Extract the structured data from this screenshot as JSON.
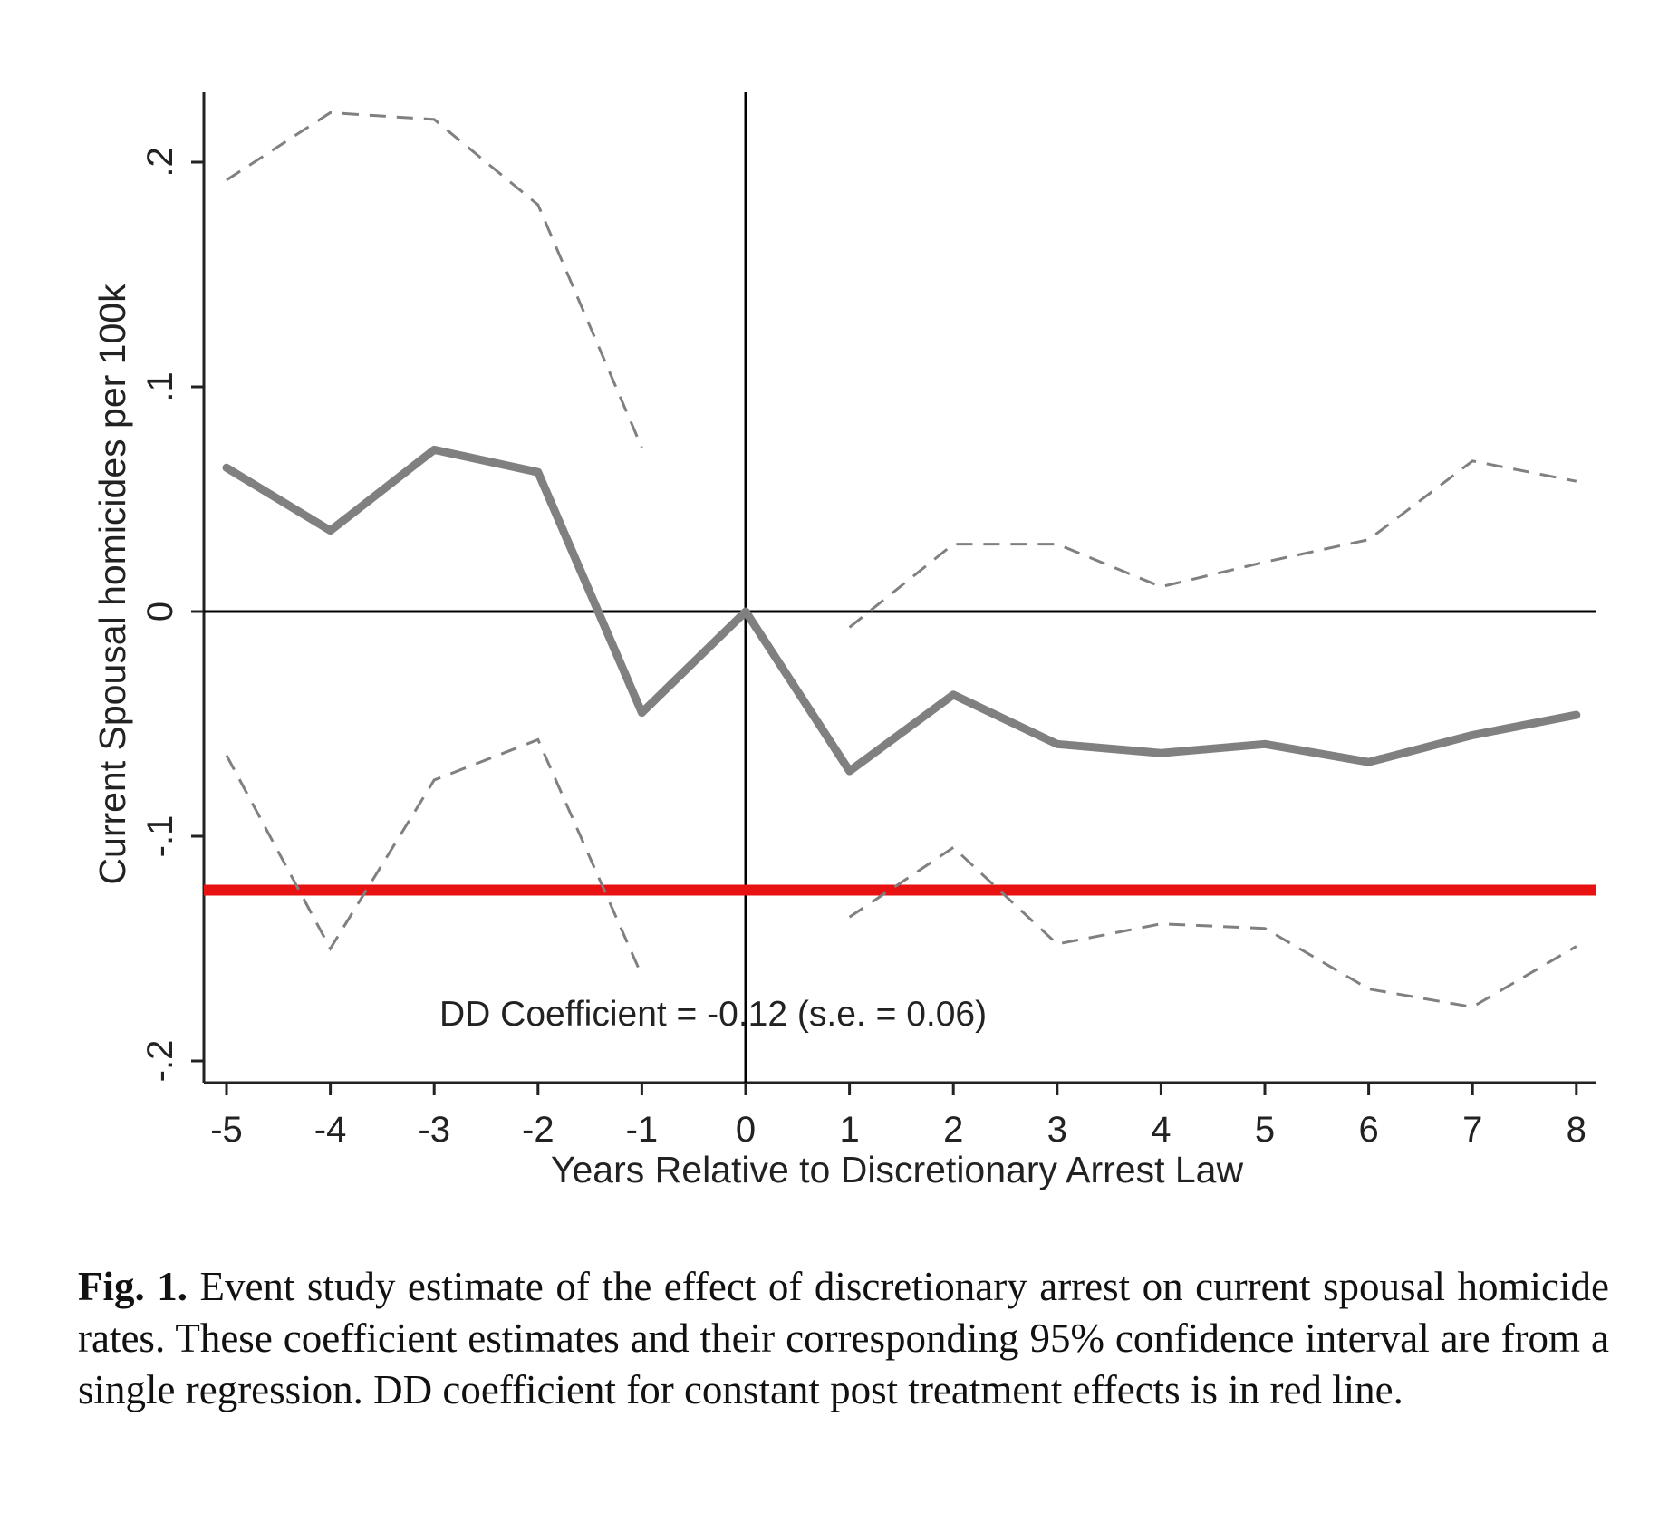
{
  "chart_data": {
    "type": "line",
    "title": "",
    "xlabel": "Years Relative to Discretionary Arrest Law",
    "ylabel": "Current Spousal homicides per 100k",
    "xlim": [
      -5,
      8
    ],
    "ylim": [
      -0.2,
      0.22
    ],
    "x_ticks": [
      -5,
      -4,
      -3,
      -2,
      -1,
      0,
      1,
      2,
      3,
      4,
      5,
      6,
      7,
      8
    ],
    "x_tick_labels": [
      "-5",
      "-4",
      "-3",
      "-2",
      "-1",
      "0",
      "1",
      "2",
      "3",
      "4",
      "5",
      "6",
      "7",
      "8"
    ],
    "y_ticks": [
      -0.2,
      -0.1,
      0,
      0.1,
      0.2
    ],
    "y_tick_labels": [
      "-.2",
      "-.1",
      "0",
      ".1",
      ".2"
    ],
    "grid": false,
    "legend": "none",
    "series": [
      {
        "role": "estimate",
        "style": "solid",
        "color": "#808080",
        "x": [
          -5,
          -4,
          -3,
          -2,
          -1,
          0,
          1,
          2,
          3,
          4,
          5,
          6,
          7,
          8
        ],
        "y": [
          0.064,
          0.036,
          0.072,
          0.062,
          -0.045,
          0.0,
          -0.071,
          -0.037,
          -0.059,
          -0.063,
          -0.059,
          -0.067,
          -0.055,
          -0.046
        ]
      },
      {
        "role": "ci-upper",
        "style": "dashed",
        "color": "#808080",
        "segments": [
          {
            "x": [
              -5,
              -4,
              -3,
              -2,
              -1
            ],
            "y": [
              0.192,
              0.222,
              0.219,
              0.181,
              0.073
            ]
          },
          {
            "x": [
              1,
              2,
              3,
              4,
              5,
              6,
              7,
              8
            ],
            "y": [
              -0.007,
              0.03,
              0.03,
              0.011,
              0.022,
              0.032,
              0.067,
              0.058
            ]
          }
        ]
      },
      {
        "role": "ci-lower",
        "style": "dashed",
        "color": "#808080",
        "segments": [
          {
            "x": [
              -5,
              -4,
              -3,
              -2,
              -1
            ],
            "y": [
              -0.064,
              -0.15,
              -0.075,
              -0.057,
              -0.162
            ]
          },
          {
            "x": [
              1,
              2,
              3,
              4,
              5,
              6,
              7,
              8
            ],
            "y": [
              -0.136,
              -0.105,
              -0.148,
              -0.139,
              -0.141,
              -0.168,
              -0.176,
              -0.149
            ]
          }
        ]
      }
    ],
    "reference_lines": [
      {
        "orientation": "horizontal",
        "value": 0,
        "color": "#000000"
      },
      {
        "orientation": "vertical",
        "value": 0,
        "color": "#000000"
      },
      {
        "orientation": "horizontal",
        "value": -0.124,
        "color": "#e81212"
      }
    ],
    "annotation": "DD Coefficient = -0.12 (s.e. = 0.06)"
  },
  "caption": {
    "label": "Fig. 1.",
    "text": " Event study estimate of the effect of discretionary arrest on current spousal homicide rates. These coefficient estimates and their corresponding 95% confidence interval are from a single regression. DD coefficient for constant post treatment effects is in red line."
  }
}
